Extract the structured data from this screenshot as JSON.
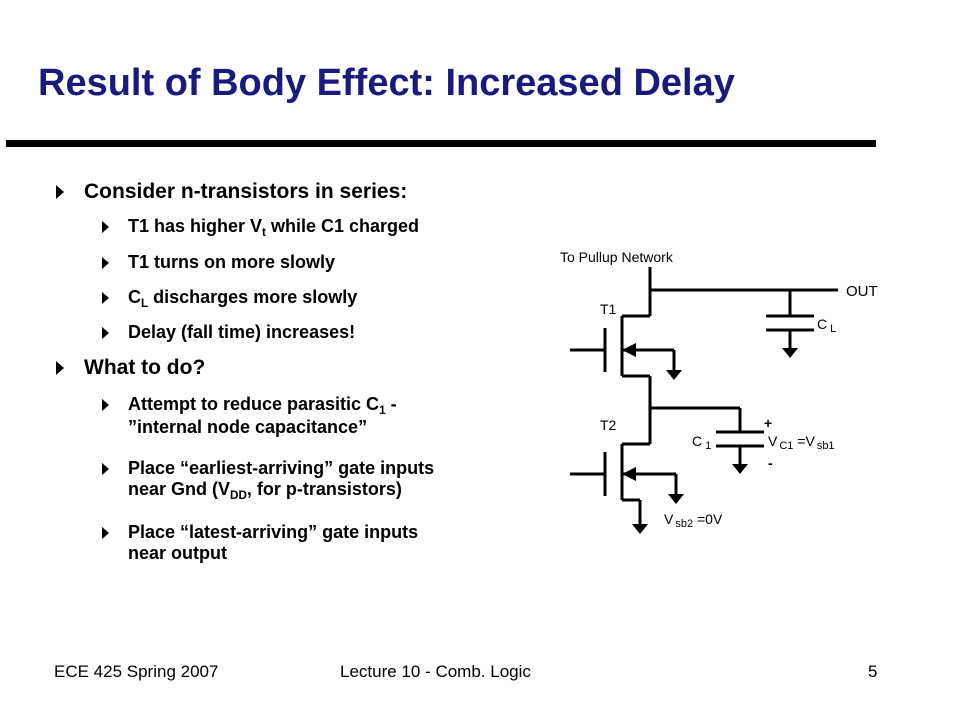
{
  "slide": {
    "title": "Result of Body Effect: Increased Delay",
    "bullets": {
      "b1": "Consider n-transistors in series:",
      "b1_1_a": "T1 has higher V",
      "b1_1_sub": "t",
      "b1_1_b": " while C1 charged",
      "b1_2": "T1 turns on more slowly",
      "b1_3_a": "C",
      "b1_3_sub": "L",
      "b1_3_b": " discharges more slowly",
      "b1_4": "Delay (fall time) increases!",
      "b2": "What to do?",
      "b2_1_a": "Attempt to reduce parasitic C",
      "b2_1_sub": "1",
      "b2_1_b": " -",
      "b2_1_line2": "”internal node capacitance”",
      "b2_2_line1": "Place “earliest-arriving” gate inputs",
      "b2_2_line2_a": "near Gnd (V",
      "b2_2_line2_sub": "DD",
      "b2_2_line2_b": ", for p-transistors)",
      "b2_3_line1": "Place “latest-arriving” gate inputs",
      "b2_3_line2": "near output"
    }
  },
  "circuit": {
    "pullup_label": "To Pullup Network",
    "out_label": "OUT",
    "t1_label": "T1",
    "t2_label": "T2",
    "cl_main": "C",
    "cl_sub": "L",
    "c1_main": "C",
    "c1_sub": "1",
    "vc1_a": "V",
    "vc1_sub": "C1",
    "vc1_b": " =V",
    "vc1_sub2": "sb1",
    "plus": "+",
    "minus": "-",
    "vsb2_a": "V",
    "vsb2_sub": "sb2",
    "vsb2_b": " =0V"
  },
  "footer": {
    "left": "ECE 425 Spring 2007",
    "center": "Lecture 10 - Comb. Logic",
    "page": "5"
  }
}
